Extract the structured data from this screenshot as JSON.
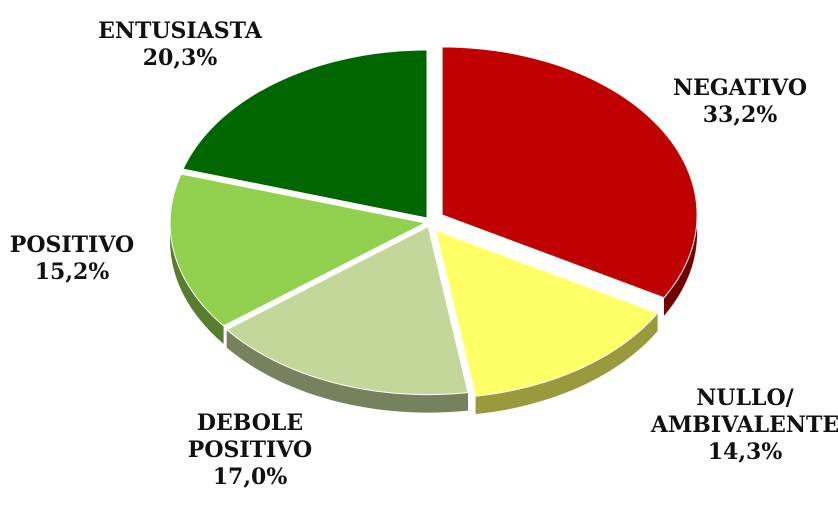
{
  "chart_data": {
    "type": "pie",
    "categories": [
      "NEGATIVO",
      "NULLO/\nAMBIVALENTE",
      "DEBOLE\nPOSITIVO",
      "POSITIVO",
      "ENTUSIASTA"
    ],
    "values": [
      33.2,
      14.3,
      17.0,
      15.2,
      20.3
    ],
    "value_labels": [
      "33,2%",
      "14,3%",
      "17,0%",
      "15,2%",
      "20,3%"
    ],
    "colors": [
      "#c00000",
      "#ffff66",
      "#c4d79b",
      "#92d050",
      "#006600"
    ]
  }
}
